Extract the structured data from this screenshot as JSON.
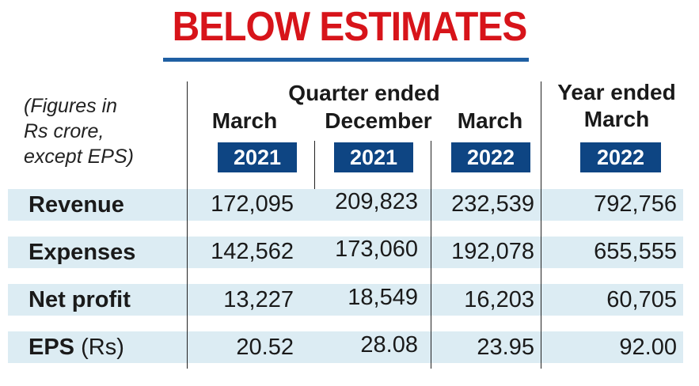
{
  "title": "BELOW ESTIMATES",
  "colors": {
    "title": "#d7141a",
    "rule": "#1f5fa3",
    "year_box": "#0e4583",
    "row_band": "#dcecf3"
  },
  "chart_data": {
    "type": "table",
    "note": [
      "(Figures in",
      "Rs crore,",
      "except EPS)"
    ],
    "group_headers": {
      "quarter": "Quarter ended",
      "year": [
        "Year ended",
        "March"
      ]
    },
    "columns": [
      {
        "month": "March",
        "year": "2021"
      },
      {
        "month": "December",
        "year": "2021"
      },
      {
        "month": "March",
        "year": "2022"
      },
      {
        "month": "",
        "year": "2022"
      }
    ],
    "rows": [
      {
        "label": "Revenue",
        "unit": "",
        "values": [
          "172,095",
          "209,823",
          "232,539",
          "792,756"
        ]
      },
      {
        "label": "Expenses",
        "unit": "",
        "values": [
          "142,562",
          "173,060",
          "192,078",
          "655,555"
        ]
      },
      {
        "label": "Net profit",
        "unit": "",
        "values": [
          "13,227",
          "18,549",
          "16,203",
          "60,705"
        ]
      },
      {
        "label": "EPS",
        "unit": "(Rs)",
        "values": [
          "20.52",
          "28.08",
          "23.95",
          "92.00"
        ]
      }
    ]
  }
}
